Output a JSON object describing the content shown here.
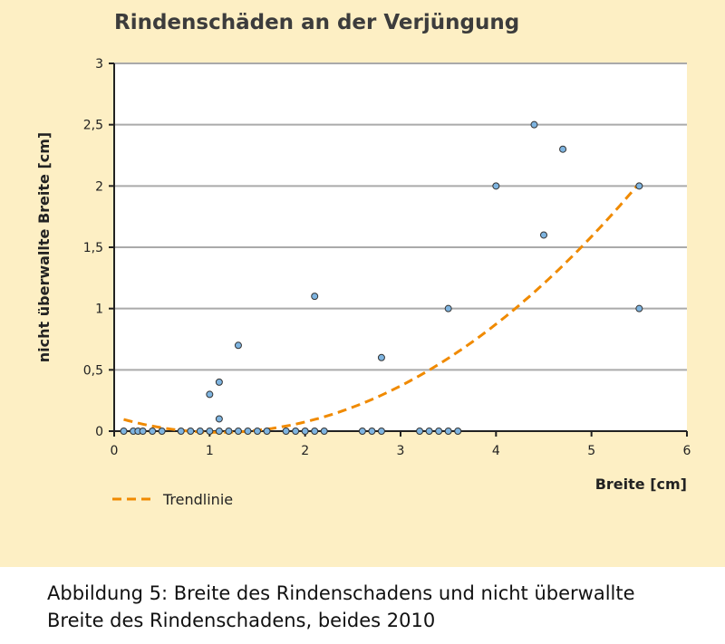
{
  "chart_data": {
    "type": "scatter",
    "title": "Rindenschäden an der Verjüngung",
    "xlabel": "Breite [cm]",
    "ylabel": "nicht überwallte Breite [cm]",
    "xlim": [
      0,
      6
    ],
    "ylim": [
      0,
      3
    ],
    "xticks": [
      "0",
      "1",
      "2",
      "3",
      "4",
      "5",
      "6"
    ],
    "yticks": [
      "0",
      "0,5",
      "1",
      "1,5",
      "2",
      "2,5",
      "3"
    ],
    "grid": "horizontal",
    "colors": {
      "points": "#7eb4e0",
      "trend": "#f08a00",
      "grid": "#aaaaaa",
      "background": "#fdefc4"
    },
    "points": [
      [
        0.1,
        0
      ],
      [
        0.2,
        0
      ],
      [
        0.25,
        0
      ],
      [
        0.3,
        0
      ],
      [
        0.4,
        0
      ],
      [
        0.5,
        0
      ],
      [
        0.7,
        0
      ],
      [
        0.8,
        0
      ],
      [
        0.9,
        0
      ],
      [
        1.0,
        0
      ],
      [
        1.1,
        0
      ],
      [
        1.2,
        0
      ],
      [
        1.3,
        0
      ],
      [
        1.4,
        0
      ],
      [
        1.5,
        0
      ],
      [
        1.6,
        0
      ],
      [
        1.8,
        0
      ],
      [
        1.9,
        0
      ],
      [
        2.0,
        0
      ],
      [
        2.1,
        0
      ],
      [
        2.2,
        0
      ],
      [
        2.6,
        0
      ],
      [
        2.7,
        0
      ],
      [
        2.8,
        0
      ],
      [
        3.2,
        0
      ],
      [
        3.3,
        0
      ],
      [
        3.4,
        0
      ],
      [
        3.5,
        0
      ],
      [
        3.6,
        0
      ],
      [
        1.0,
        0.3
      ],
      [
        1.1,
        0.4
      ],
      [
        1.1,
        0.1
      ],
      [
        1.3,
        0.7
      ],
      [
        2.1,
        1.1
      ],
      [
        2.8,
        0.6
      ],
      [
        3.5,
        1.0
      ],
      [
        4.0,
        2.0
      ],
      [
        4.4,
        2.5
      ],
      [
        4.5,
        1.6
      ],
      [
        4.7,
        2.3
      ],
      [
        5.5,
        2.0
      ],
      [
        5.5,
        1.0
      ]
    ],
    "trendline": {
      "type": "polynomial-2",
      "x_range": [
        0.1,
        5.5
      ],
      "coeffs": {
        "a": 0.105,
        "h": 1.1,
        "k": -0.01
      }
    },
    "legend": {
      "position": "bottom-left",
      "entries": [
        "Trendlinie"
      ]
    }
  },
  "caption": {
    "line1": "Abbildung 5: Breite des Rindenschadens und nicht überwallte",
    "line2": "Breite des Rindenschadens, beides 2010"
  }
}
